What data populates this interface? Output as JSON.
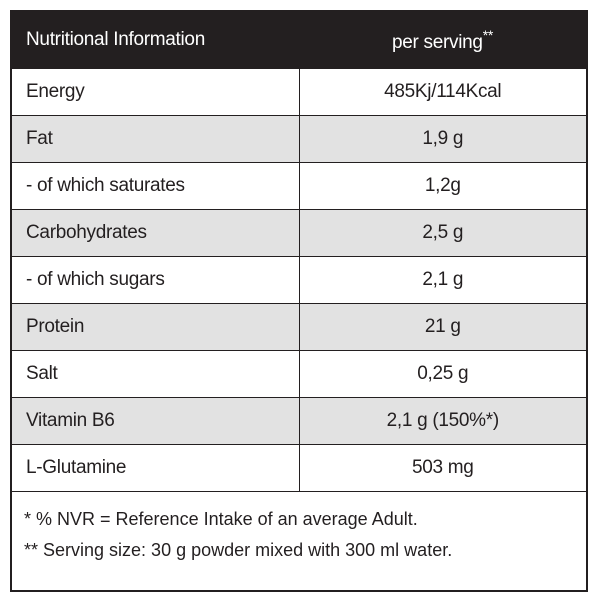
{
  "header": {
    "title": "Nutritional Information",
    "serving": "per serving",
    "serving_mark": "**"
  },
  "rows": [
    [
      "Energy",
      "485Kj/114Kcal"
    ],
    [
      "Fat",
      "1,9 g"
    ],
    [
      "- of which saturates",
      "1,2g"
    ],
    [
      "Carbohydrates",
      "2,5 g"
    ],
    [
      "- of which sugars",
      "2,1 g"
    ],
    [
      "Protein",
      "21 g"
    ],
    [
      "Salt",
      "0,25 g"
    ],
    [
      "Vitamin B6",
      "2,1 g (150%*)"
    ],
    [
      "L-Glutamine",
      "503 mg"
    ]
  ],
  "footnotes": [
    "* % NVR = Reference Intake of an average Adult.",
    "** Serving size: 30 g powder mixed with 300 ml water."
  ]
}
